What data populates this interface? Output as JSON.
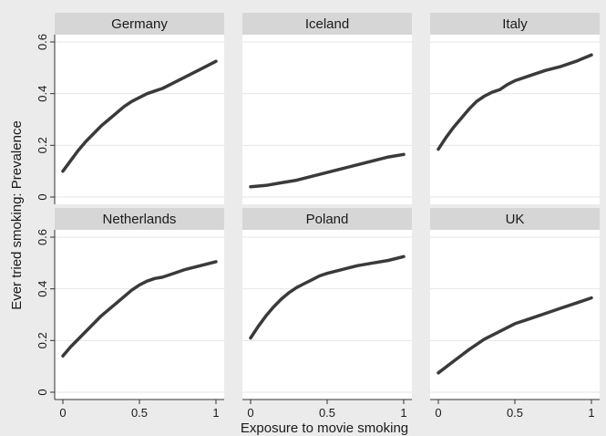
{
  "chart_data": {
    "type": "line",
    "xlabel": "Exposure to movie smoking",
    "ylabel": "Ever tried smoking: Prevalence",
    "xlim": [
      0,
      1
    ],
    "ylim": [
      0,
      0.6
    ],
    "xticks": [
      0,
      0.5,
      1
    ],
    "xtick_labels": [
      "0",
      "0.5",
      "1"
    ],
    "yticks": [
      0,
      0.2,
      0.4,
      0.6
    ],
    "ytick_labels": [
      "0",
      "0.2",
      "0.4",
      "0.6"
    ],
    "grid": true,
    "line_color": "#3a3a3a",
    "panels": [
      {
        "name": "Germany",
        "x": [
          0,
          0.05,
          0.1,
          0.15,
          0.2,
          0.25,
          0.3,
          0.35,
          0.4,
          0.45,
          0.5,
          0.55,
          0.6,
          0.65,
          0.7,
          0.8,
          0.9,
          1.0
        ],
        "y": [
          0.1,
          0.14,
          0.18,
          0.215,
          0.245,
          0.275,
          0.3,
          0.325,
          0.35,
          0.37,
          0.385,
          0.4,
          0.41,
          0.42,
          0.435,
          0.465,
          0.495,
          0.525
        ]
      },
      {
        "name": "Iceland",
        "x": [
          0,
          0.1,
          0.2,
          0.3,
          0.4,
          0.5,
          0.6,
          0.7,
          0.8,
          0.9,
          1.0
        ],
        "y": [
          0.04,
          0.045,
          0.055,
          0.065,
          0.08,
          0.095,
          0.11,
          0.125,
          0.14,
          0.155,
          0.165
        ]
      },
      {
        "name": "Italy",
        "x": [
          0,
          0.05,
          0.1,
          0.15,
          0.2,
          0.25,
          0.3,
          0.35,
          0.4,
          0.45,
          0.5,
          0.6,
          0.7,
          0.8,
          0.9,
          1.0
        ],
        "y": [
          0.185,
          0.23,
          0.27,
          0.305,
          0.34,
          0.37,
          0.39,
          0.405,
          0.415,
          0.435,
          0.45,
          0.47,
          0.49,
          0.505,
          0.525,
          0.55
        ]
      },
      {
        "name": "Netherlands",
        "x": [
          0,
          0.05,
          0.1,
          0.15,
          0.2,
          0.25,
          0.3,
          0.35,
          0.4,
          0.45,
          0.5,
          0.55,
          0.6,
          0.65,
          0.7,
          0.8,
          0.9,
          1.0
        ],
        "y": [
          0.14,
          0.175,
          0.205,
          0.235,
          0.265,
          0.295,
          0.32,
          0.345,
          0.37,
          0.395,
          0.415,
          0.43,
          0.44,
          0.445,
          0.455,
          0.475,
          0.49,
          0.505
        ]
      },
      {
        "name": "Poland",
        "x": [
          0,
          0.05,
          0.1,
          0.15,
          0.2,
          0.25,
          0.3,
          0.35,
          0.4,
          0.45,
          0.5,
          0.6,
          0.7,
          0.8,
          0.9,
          1.0
        ],
        "y": [
          0.21,
          0.255,
          0.295,
          0.33,
          0.36,
          0.385,
          0.405,
          0.42,
          0.435,
          0.45,
          0.46,
          0.475,
          0.49,
          0.5,
          0.51,
          0.525
        ]
      },
      {
        "name": "UK",
        "x": [
          0,
          0.1,
          0.2,
          0.3,
          0.4,
          0.5,
          0.6,
          0.7,
          0.8,
          0.9,
          1.0
        ],
        "y": [
          0.075,
          0.12,
          0.165,
          0.205,
          0.235,
          0.265,
          0.285,
          0.305,
          0.325,
          0.345,
          0.365
        ]
      }
    ]
  }
}
